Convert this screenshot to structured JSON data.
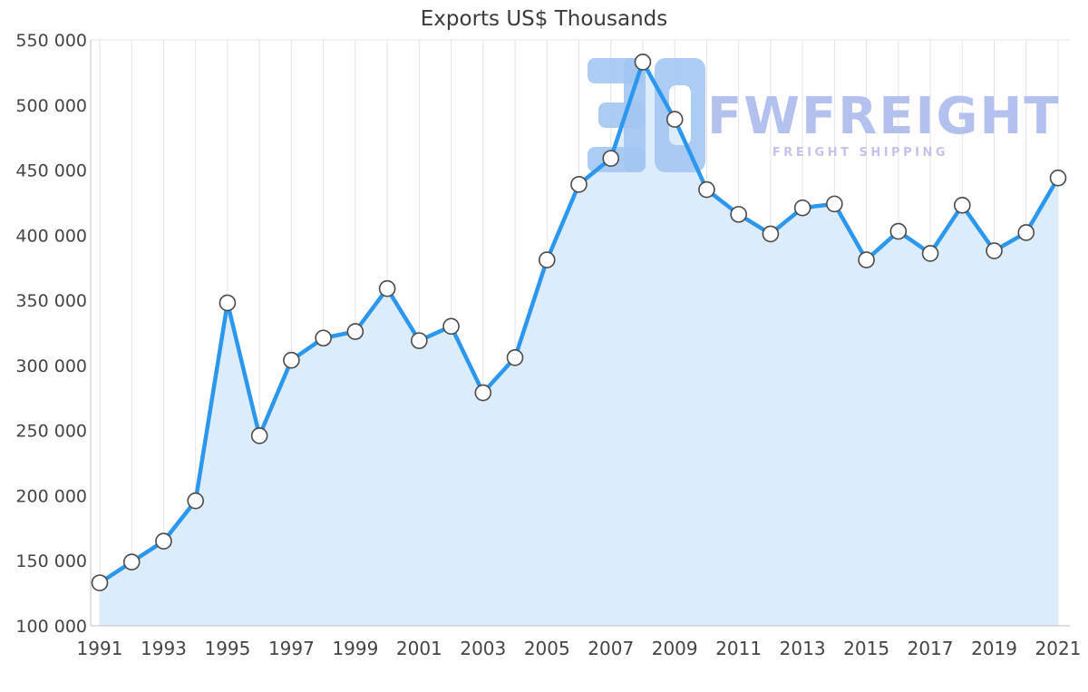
{
  "watermark": {
    "brand": "FWFREIGHT",
    "tagline": "FREIGHT SHIPPING",
    "brand_color": "#b2c1ee",
    "tagline_color": "#c6c2e9",
    "logo_color": "#a3c7f2",
    "logo_icon": "3d-block-logo"
  },
  "chart_data": {
    "type": "area",
    "title": "Exports US$ Thousands",
    "xlabel": "",
    "ylabel": "",
    "x": [
      1991,
      1992,
      1993,
      1994,
      1995,
      1996,
      1997,
      1998,
      1999,
      2000,
      2001,
      2002,
      2003,
      2004,
      2005,
      2006,
      2007,
      2008,
      2009,
      2010,
      2011,
      2012,
      2013,
      2014,
      2015,
      2016,
      2017,
      2018,
      2019,
      2020,
      2021
    ],
    "values": [
      133000,
      149000,
      165000,
      196000,
      348000,
      246000,
      304000,
      321000,
      326000,
      359000,
      319000,
      330000,
      279000,
      306000,
      381000,
      439000,
      459000,
      533000,
      489000,
      435000,
      416000,
      401000,
      421000,
      424000,
      381000,
      403000,
      386000,
      423000,
      388000,
      402000,
      444000
    ],
    "ylim": [
      100000,
      550000
    ],
    "ytick_step": 50000,
    "ytick_labels": [
      "550 000",
      "500 000",
      "450 000",
      "400 000",
      "350 000",
      "300 000",
      "250 000",
      "200 000",
      "150 000",
      "100 000"
    ],
    "xtick_labels": [
      1991,
      1993,
      1995,
      1997,
      1999,
      2001,
      2003,
      2005,
      2007,
      2009,
      2011,
      2013,
      2015,
      2017,
      2019,
      2021
    ],
    "grid": "vertical",
    "legend": "none",
    "colors": {
      "line": "#2b97ee",
      "fill": "#d9eaf9",
      "marker_fill": "#ffffff",
      "marker_stroke": "#4a4a4a",
      "grid": "#e4e4e4",
      "axis": "#c2c2c2",
      "text": "#454545"
    }
  }
}
